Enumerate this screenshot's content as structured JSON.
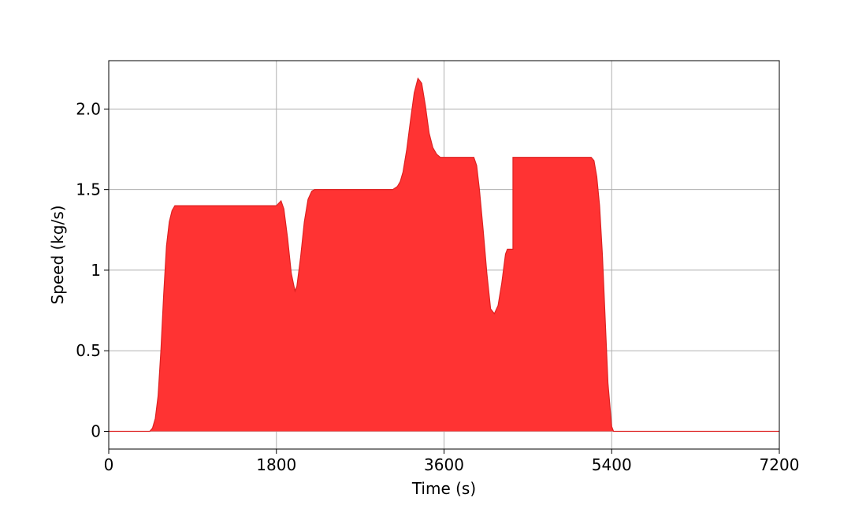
{
  "chart_data": {
    "type": "area",
    "title": "",
    "xlabel": "Time (s)",
    "ylabel": "Speed (kg/s)",
    "xlim": [
      0,
      7200
    ],
    "ylim": [
      -0.11,
      2.3
    ],
    "xticks": [
      0,
      1800,
      3600,
      5400,
      7200
    ],
    "xtick_labels": [
      "0",
      "1800",
      "3600",
      "5400",
      "7200"
    ],
    "yticks": [
      0,
      0.5,
      1,
      1.5,
      2
    ],
    "ytick_labels": [
      "0",
      "0.5",
      "1",
      "1.5",
      "2.0"
    ],
    "grid": true,
    "fill_color": "#ff3333",
    "line_color": "#dd2222",
    "series": [
      {
        "x": [
          0,
          440,
          470,
          500,
          530,
          560,
          590,
          620,
          650,
          680,
          710,
          740,
          760,
          800,
          1000,
          1500,
          1800,
          1850,
          1880,
          1920,
          1960,
          2000,
          2020,
          2060,
          2100,
          2140,
          2180,
          2210,
          2240,
          2400,
          2800,
          3050,
          3100,
          3130,
          3160,
          3200,
          3240,
          3280,
          3320,
          3360,
          3400,
          3440,
          3480,
          3520,
          3560,
          3600,
          3700,
          3800,
          3920,
          3950,
          3980,
          4020,
          4060,
          4100,
          4140,
          4180,
          4220,
          4260,
          4280,
          4300,
          4340,
          4340,
          4500,
          4800,
          5100,
          5180,
          5210,
          5240,
          5270,
          5300,
          5330,
          5360,
          5400,
          5420,
          7200
        ],
        "y": [
          0,
          0,
          0.02,
          0.08,
          0.22,
          0.5,
          0.85,
          1.15,
          1.3,
          1.37,
          1.4,
          1.4,
          1.4,
          1.4,
          1.4,
          1.4,
          1.4,
          1.43,
          1.38,
          1.2,
          0.98,
          0.87,
          0.9,
          1.08,
          1.3,
          1.44,
          1.49,
          1.5,
          1.5,
          1.5,
          1.5,
          1.5,
          1.52,
          1.55,
          1.61,
          1.75,
          1.93,
          2.1,
          2.19,
          2.16,
          2.02,
          1.85,
          1.76,
          1.72,
          1.7,
          1.7,
          1.7,
          1.7,
          1.7,
          1.65,
          1.5,
          1.25,
          0.98,
          0.76,
          0.73,
          0.78,
          0.92,
          1.1,
          1.13,
          1.13,
          1.13,
          1.7,
          1.7,
          1.7,
          1.7,
          1.7,
          1.68,
          1.58,
          1.4,
          1.1,
          0.7,
          0.3,
          0.03,
          0,
          0
        ]
      }
    ]
  }
}
